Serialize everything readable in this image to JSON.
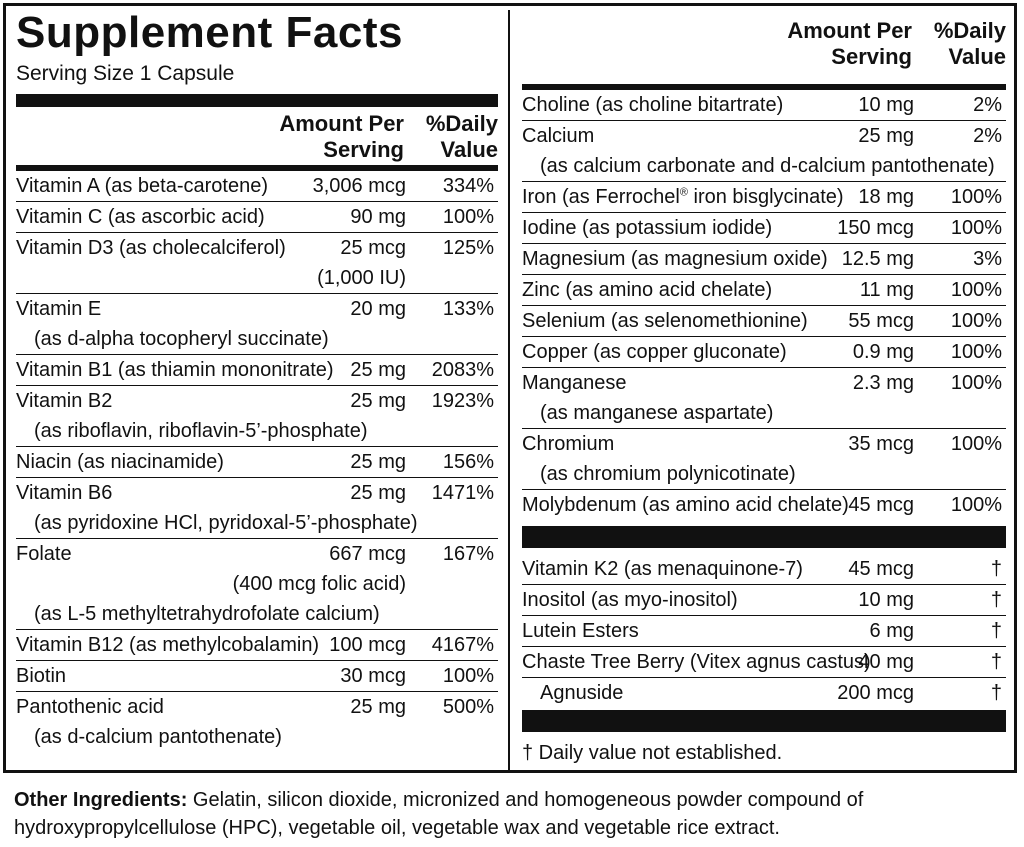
{
  "title": "Supplement Facts",
  "serving_size": "Serving Size 1 Capsule",
  "header": {
    "amount_line1": "Amount Per",
    "amount_line2": "Serving",
    "dv_line1": "%Daily",
    "dv_line2": "Value"
  },
  "left_rows": [
    {
      "name": "Vitamin A (as beta-carotene)",
      "amount": "3,006 mcg",
      "dv": "334%"
    },
    {
      "name": "Vitamin C (as ascorbic acid)",
      "amount": "90 mg",
      "dv": "100%"
    },
    {
      "name": "Vitamin D3 (as cholecalciferol)",
      "amount": "25 mcg",
      "dv": "125%",
      "amount_sub": "(1,000 IU)"
    },
    {
      "name": "Vitamin E",
      "amount": "20 mg",
      "dv": "133%",
      "sub": "(as d-alpha tocopheryl succinate)"
    },
    {
      "name": "Vitamin B1 (as thiamin mononitrate)",
      "amount": "25 mg",
      "dv": "2083%"
    },
    {
      "name": "Vitamin B2",
      "amount": "25 mg",
      "dv": "1923%",
      "sub": "(as riboflavin, riboflavin-5’-phosphate)"
    },
    {
      "name": "Niacin (as niacinamide)",
      "amount": "25 mg",
      "dv": "156%"
    },
    {
      "name": "Vitamin B6",
      "amount": "25 mg",
      "dv": "1471%",
      "sub": "(as pyridoxine HCl, pyridoxal-5’-phosphate)"
    },
    {
      "name": "Folate",
      "amount": "667 mcg",
      "dv": "167%",
      "amount_sub": "(400 mcg folic acid)",
      "sub": "(as L-5 methyltetrahydrofolate calcium)"
    },
    {
      "name": "Vitamin B12 (as methylcobalamin)",
      "amount": "100 mcg",
      "dv": "4167%"
    },
    {
      "name": "Biotin",
      "amount": "30 mcg",
      "dv": "100%"
    },
    {
      "name": "Pantothenic acid",
      "amount": "25 mg",
      "dv": "500%",
      "sub": "(as d-calcium pantothenate)"
    }
  ],
  "right_rows": [
    {
      "name": "Choline (as choline bitartrate)",
      "amount": "10 mg",
      "dv": "2%"
    },
    {
      "name": "Calcium",
      "amount": "25 mg",
      "dv": "2%",
      "sub": "(as calcium carbonate and d-calcium pantothenate)"
    },
    {
      "name": "Iron (as Ferrochel",
      "reg": "®",
      "name_suffix": " iron bisglycinate)",
      "amount": "18 mg",
      "dv": "100%"
    },
    {
      "name": "Iodine (as potassium iodide)",
      "amount": "150 mcg",
      "dv": "100%"
    },
    {
      "name": "Magnesium (as magnesium oxide)",
      "amount": "12.5 mg",
      "dv": "3%"
    },
    {
      "name": "Zinc (as amino acid chelate)",
      "amount": "11 mg",
      "dv": "100%"
    },
    {
      "name": "Selenium (as selenomethionine)",
      "amount": "55 mcg",
      "dv": "100%"
    },
    {
      "name": "Copper (as copper gluconate)",
      "amount": "0.9 mg",
      "dv": "100%"
    },
    {
      "name": "Manganese",
      "amount": "2.3 mg",
      "dv": "100%",
      "sub": "(as manganese aspartate)"
    },
    {
      "name": "Chromium",
      "amount": "35 mcg",
      "dv": "100%",
      "sub": "(as chromium polynicotinate)"
    },
    {
      "name": "Molybdenum (as amino acid chelate)",
      "amount": "45 mcg",
      "dv": "100%"
    }
  ],
  "other_rows": [
    {
      "name": "Vitamin K2 (as menaquinone-7)",
      "amount": "45 mcg",
      "dv": "†"
    },
    {
      "name": "Inositol (as myo-inositol)",
      "amount": "10 mg",
      "dv": "†"
    },
    {
      "name": "Lutein Esters",
      "amount": "6 mg",
      "dv": "†"
    },
    {
      "name": "Chaste Tree Berry (Vitex agnus castus)",
      "amount": "40 mg",
      "dv": "†"
    },
    {
      "name": "Agnuside",
      "amount": "200 mcg",
      "dv": "†",
      "indent": true
    }
  ],
  "footnote": "† Daily value not established.",
  "other_ingredients": {
    "label": "Other Ingredients:",
    "text": " Gelatin, silicon dioxide, micronized and homogeneous powder compound of hydroxypropylcellulose (HPC), vegetable oil, vegetable wax and vegetable rice extract."
  }
}
